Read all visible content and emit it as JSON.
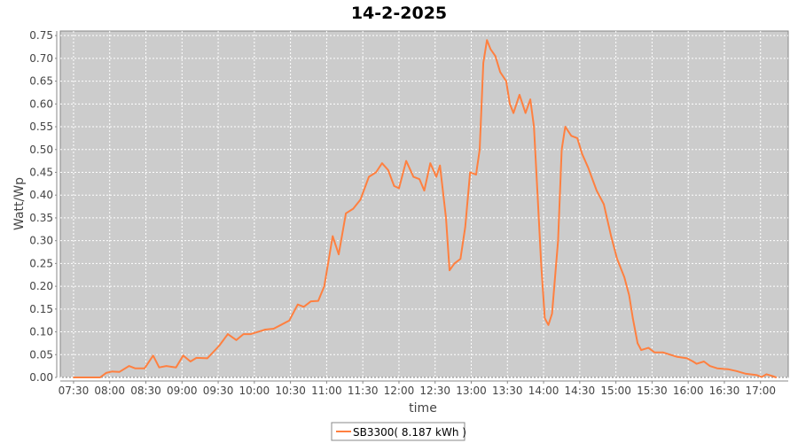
{
  "chart_data": {
    "type": "line",
    "title": "14-2-2025",
    "xlabel": "time",
    "ylabel": "Watt/Wp",
    "xlim": [
      "07:19",
      "17:23"
    ],
    "ylim": [
      0,
      0.76
    ],
    "grid": true,
    "legend_placement": "bottom",
    "colors": {
      "series": "#ff8040",
      "plot_background": "#cccccc",
      "grid": "#ffffff"
    },
    "x_ticks": [
      "07:30",
      "08:00",
      "08:30",
      "09:00",
      "09:30",
      "10:00",
      "10:30",
      "11:00",
      "11:30",
      "12:00",
      "12:30",
      "13:00",
      "13:30",
      "14:00",
      "14:30",
      "15:00",
      "15:30",
      "16:00",
      "16:30",
      "17:00"
    ],
    "y_ticks": [
      "0.00",
      "0.05",
      "0.10",
      "0.15",
      "0.20",
      "0.25",
      "0.30",
      "0.35",
      "0.40",
      "0.45",
      "0.50",
      "0.55",
      "0.60",
      "0.65",
      "0.70",
      "0.75"
    ],
    "series": [
      {
        "name": "SB3300( 8.187 kWh )",
        "x": [
          "07:30",
          "07:52",
          "07:57",
          "08:02",
          "08:08",
          "08:16",
          "08:21",
          "08:29",
          "08:36",
          "08:41",
          "08:47",
          "08:55",
          "09:01",
          "09:07",
          "09:12",
          "09:21",
          "09:31",
          "09:38",
          "09:45",
          "09:51",
          "09:57",
          "10:03",
          "10:09",
          "10:16",
          "10:22",
          "10:29",
          "10:36",
          "10:41",
          "10:47",
          "10:53",
          "10:58",
          "11:05",
          "11:10",
          "11:16",
          "11:22",
          "11:28",
          "11:35",
          "11:41",
          "11:46",
          "11:51",
          "11:56",
          "12:00",
          "12:06",
          "12:12",
          "12:17",
          "12:21",
          "12:26",
          "12:31",
          "12:34",
          "12:39",
          "12:42",
          "12:46",
          "12:51",
          "12:55",
          "12:59",
          "13:04",
          "13:07",
          "13:10",
          "13:13",
          "13:16",
          "13:20",
          "13:24",
          "13:29",
          "13:32",
          "13:35",
          "13:40",
          "13:45",
          "13:49",
          "13:52",
          "13:55",
          "13:58",
          "14:01",
          "14:04",
          "14:07",
          "14:12",
          "14:15",
          "14:18",
          "14:23",
          "14:28",
          "14:32",
          "14:37",
          "14:44",
          "14:50",
          "14:56",
          "15:01",
          "15:07",
          "15:11",
          "15:14",
          "15:18",
          "15:21",
          "15:27",
          "15:32",
          "15:39",
          "15:45",
          "15:51",
          "15:59",
          "16:04",
          "16:07",
          "16:13",
          "16:18",
          "16:24",
          "16:33",
          "16:40",
          "16:48",
          "16:57",
          "17:01",
          "17:05",
          "17:10",
          "17:13"
        ],
        "values": [
          0,
          0,
          0.01,
          0.013,
          0.012,
          0.025,
          0.02,
          0.02,
          0.048,
          0.022,
          0.025,
          0.022,
          0.048,
          0.035,
          0.043,
          0.042,
          0.07,
          0.095,
          0.082,
          0.095,
          0.095,
          0.1,
          0.105,
          0.107,
          0.115,
          0.125,
          0.16,
          0.155,
          0.167,
          0.168,
          0.2,
          0.31,
          0.27,
          0.36,
          0.37,
          0.39,
          0.44,
          0.45,
          0.47,
          0.455,
          0.42,
          0.415,
          0.475,
          0.44,
          0.435,
          0.41,
          0.47,
          0.44,
          0.465,
          0.35,
          0.235,
          0.25,
          0.26,
          0.33,
          0.45,
          0.445,
          0.5,
          0.69,
          0.74,
          0.72,
          0.705,
          0.67,
          0.65,
          0.6,
          0.58,
          0.62,
          0.58,
          0.61,
          0.55,
          0.4,
          0.25,
          0.13,
          0.115,
          0.14,
          0.3,
          0.5,
          0.55,
          0.53,
          0.525,
          0.49,
          0.46,
          0.41,
          0.38,
          0.31,
          0.26,
          0.22,
          0.18,
          0.13,
          0.075,
          0.06,
          0.065,
          0.055,
          0.055,
          0.05,
          0.045,
          0.042,
          0.035,
          0.03,
          0.035,
          0.025,
          0.02,
          0.018,
          0.014,
          0.008,
          0.005,
          0.001,
          0.007,
          0.003,
          0
        ]
      }
    ]
  }
}
